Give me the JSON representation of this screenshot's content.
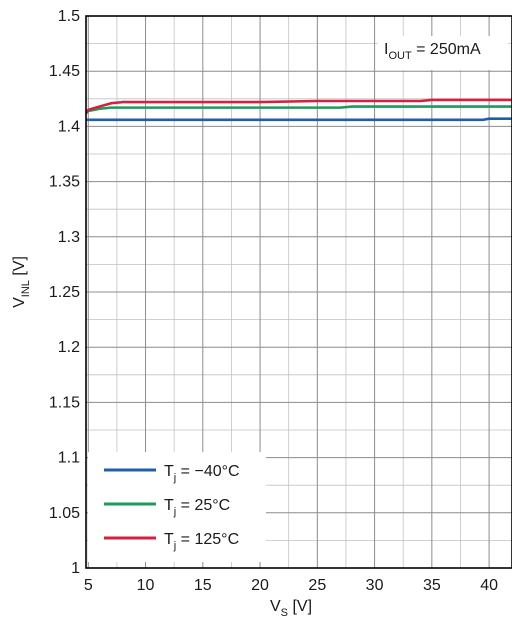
{
  "chart_data": {
    "type": "line",
    "xlabel_main": "V",
    "xlabel_sub": "S",
    "xlabel_unit": " [V]",
    "ylabel_main": "V",
    "ylabel_sub": "INL",
    "ylabel_unit": " [V]",
    "xlim": [
      4.8,
      42
    ],
    "ylim": [
      1.0,
      1.5
    ],
    "x_ticks": [
      5,
      10,
      15,
      20,
      25,
      30,
      35,
      40
    ],
    "x_tick_labels": [
      "5",
      "10",
      "15",
      "20",
      "25",
      "30",
      "35",
      "40"
    ],
    "y_ticks": [
      1.0,
      1.05,
      1.1,
      1.15,
      1.2,
      1.25,
      1.3,
      1.35,
      1.4,
      1.45,
      1.5
    ],
    "y_tick_labels": [
      "1",
      "1.05",
      "1.1",
      "1.15",
      "1.2",
      "1.25",
      "1.3",
      "1.35",
      "1.4",
      "1.45",
      "1.5"
    ],
    "x_grid_step": 2.5,
    "y_grid_step": 0.025,
    "grid": true,
    "legend_position": "bottom-left",
    "annotation": {
      "main": "I",
      "sub": "OUT",
      "rest": " = 250mA"
    },
    "series": [
      {
        "name_main": "T",
        "name_sub": "j",
        "name_rest": " = −40°C",
        "color": "#1f5fa8",
        "x": [
          4.8,
          5,
          10,
          20,
          30,
          39.5,
          40,
          42
        ],
        "y": [
          1.406,
          1.406,
          1.406,
          1.406,
          1.406,
          1.406,
          1.407,
          1.407
        ]
      },
      {
        "name_main": "T",
        "name_sub": "j",
        "name_rest": " = 25°C",
        "color": "#1f9a5a",
        "x": [
          4.8,
          5,
          6,
          7,
          10,
          20,
          27,
          28,
          35,
          42
        ],
        "y": [
          1.412,
          1.414,
          1.416,
          1.417,
          1.417,
          1.417,
          1.417,
          1.418,
          1.418,
          1.418
        ]
      },
      {
        "name_main": "T",
        "name_sub": "j",
        "name_rest": " = 125°C",
        "color": "#d4213d",
        "x": [
          4.8,
          5,
          6,
          7,
          8,
          10,
          20,
          25,
          30,
          34,
          35,
          42
        ],
        "y": [
          1.412,
          1.415,
          1.418,
          1.421,
          1.422,
          1.422,
          1.422,
          1.423,
          1.423,
          1.423,
          1.424,
          1.424
        ]
      }
    ]
  }
}
